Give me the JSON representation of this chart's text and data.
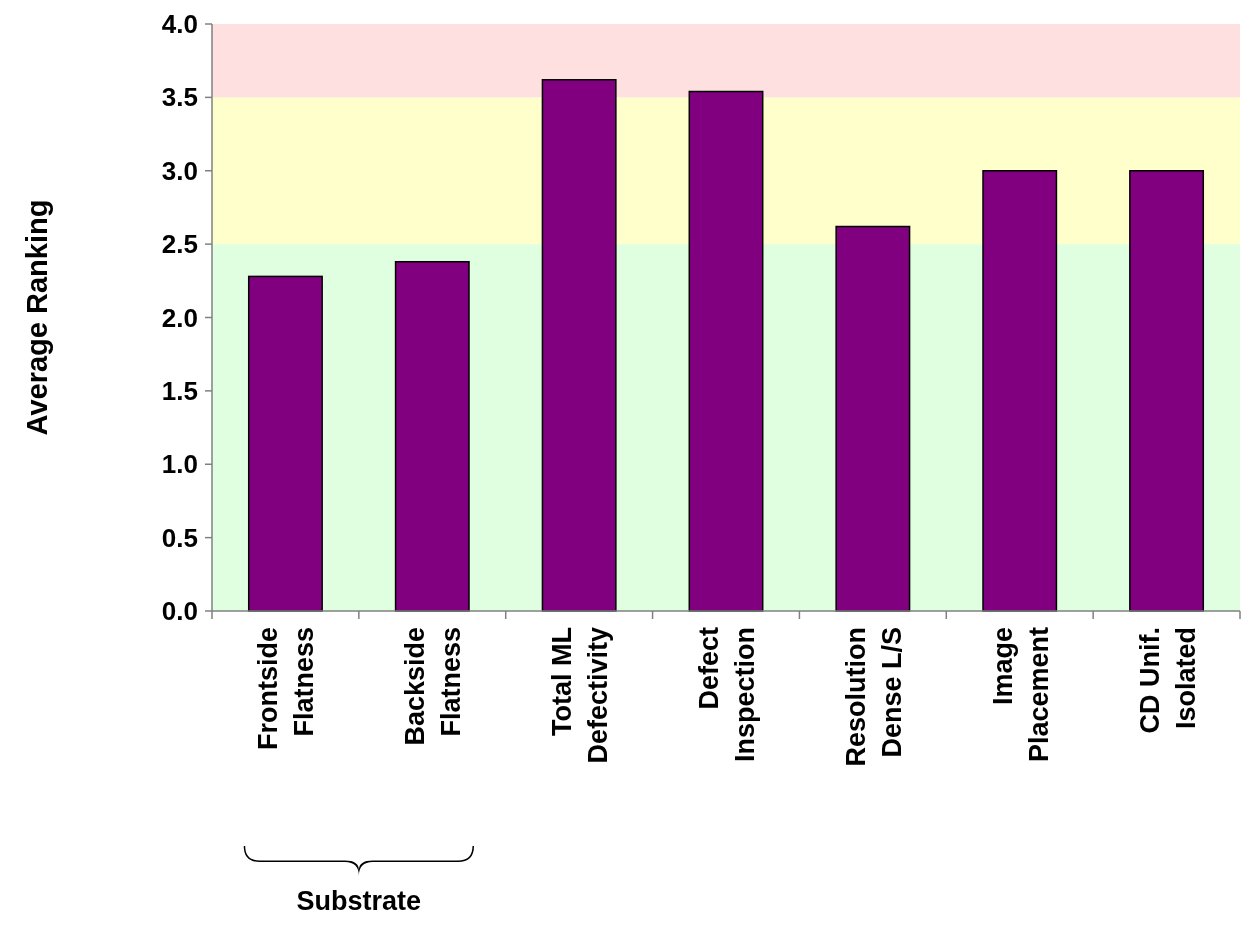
{
  "chart_data": {
    "type": "bar",
    "ylabel": "Average Ranking",
    "categories": [
      "Frontside\nFlatness",
      "Backside\nFlatness",
      "Total ML\nDefectivity",
      "Defect\nInspection",
      "Resolution\nDense L/S",
      "Image\nPlacement",
      "CD Unif.\nIsolated"
    ],
    "values": [
      2.28,
      2.38,
      3.62,
      3.54,
      2.62,
      3.0,
      3.0
    ],
    "color": "#800080",
    "ylim": [
      0,
      4
    ],
    "yticks": [
      {
        "value": 0,
        "label": "0.0"
      },
      {
        "value": 0.5,
        "label": "0.5"
      },
      {
        "value": 1,
        "label": "1.0"
      },
      {
        "value": 1.5,
        "label": "1.5"
      },
      {
        "value": 2,
        "label": "2.0"
      },
      {
        "value": 2.5,
        "label": "2.5"
      },
      {
        "value": 3,
        "label": "3.0"
      },
      {
        "value": 3.5,
        "label": "3.5"
      },
      {
        "value": 4,
        "label": "4.0"
      }
    ],
    "bands": [
      {
        "axis": "y",
        "from": 0,
        "to": 2.5,
        "color": "#e0ffe0"
      },
      {
        "axis": "y",
        "from": 2.5,
        "to": 3.5,
        "color": "#ffffcc"
      },
      {
        "axis": "y",
        "from": 3.5,
        "to": 4,
        "color": "#ffe0e0"
      }
    ],
    "annotations": [
      "Substrate"
    ],
    "grid": false
  }
}
